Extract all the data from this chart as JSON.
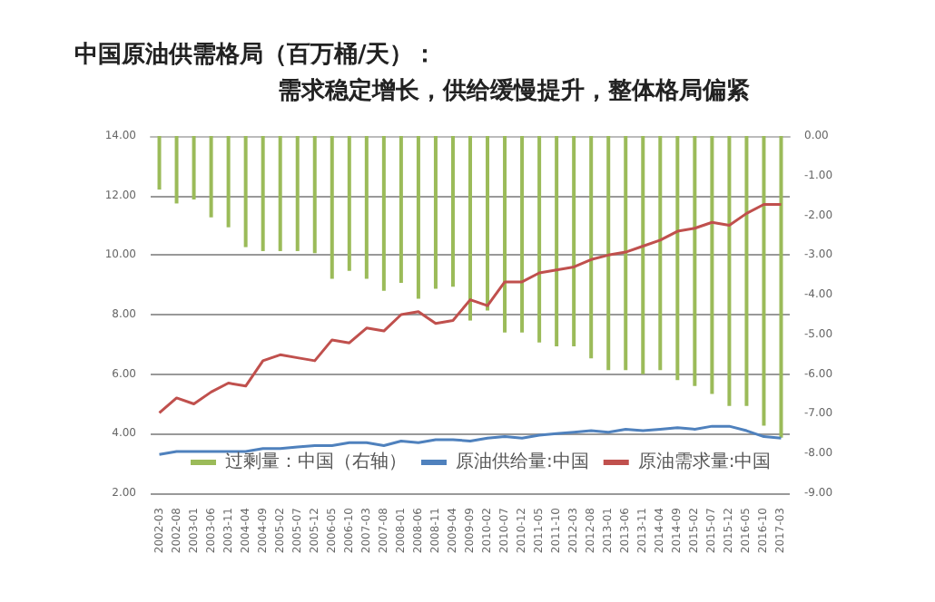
{
  "chart_data": {
    "type": "bar",
    "title": "中国原油供需格局（百万桶/天）：",
    "subtitle": "需求稳定增长，供给缓慢提升，整体格局偏紧",
    "categories": [
      "2002-03",
      "2002-08",
      "2003-01",
      "2003-06",
      "2003-11",
      "2004-04",
      "2004-09",
      "2005-02",
      "2005-07",
      "2005-12",
      "2006-05",
      "2006-10",
      "2007-03",
      "2007-08",
      "2008-01",
      "2008-06",
      "2008-11",
      "2009-04",
      "2009-09",
      "2010-02",
      "2010-07",
      "2010-12",
      "2011-05",
      "2011-10",
      "2012-03",
      "2012-08",
      "2013-01",
      "2013-06",
      "2013-11",
      "2014-04",
      "2014-09",
      "2015-02",
      "2015-07",
      "2015-12",
      "2016-05",
      "2016-10",
      "2017-03"
    ],
    "series": [
      {
        "name": "过剩量：中国（右轴）",
        "axis": "y2",
        "color": "#9bbb59",
        "values": [
          -1.35,
          -1.7,
          -1.6,
          -2.05,
          -2.3,
          -2.8,
          -2.9,
          -2.9,
          -2.9,
          -2.95,
          -3.6,
          -3.4,
          -3.6,
          -3.9,
          -3.7,
          -4.1,
          -3.85,
          -3.8,
          -4.65,
          -4.4,
          -4.95,
          -4.95,
          -5.2,
          -5.3,
          -5.3,
          -5.6,
          -5.9,
          -5.9,
          -6.0,
          -5.9,
          -6.15,
          -6.3,
          -6.5,
          -6.8,
          -6.8,
          -7.3,
          -7.6
        ]
      },
      {
        "name": "原油供给量:中国",
        "type": "line",
        "color": "#4f81bd",
        "values": [
          3.3,
          3.4,
          3.4,
          3.4,
          3.4,
          3.4,
          3.5,
          3.5,
          3.55,
          3.6,
          3.6,
          3.7,
          3.7,
          3.6,
          3.75,
          3.7,
          3.8,
          3.8,
          3.75,
          3.85,
          3.9,
          3.85,
          3.95,
          4.0,
          4.05,
          4.1,
          4.05,
          4.15,
          4.1,
          4.15,
          4.2,
          4.15,
          4.25,
          4.25,
          4.1,
          3.9,
          3.85
        ]
      },
      {
        "name": "原油需求量:中国",
        "type": "line",
        "color": "#c0504d",
        "values": [
          4.7,
          5.2,
          5.0,
          5.4,
          5.7,
          5.6,
          6.45,
          6.65,
          6.55,
          6.45,
          7.15,
          7.05,
          7.55,
          7.45,
          8.0,
          8.1,
          7.7,
          7.8,
          8.5,
          8.3,
          9.1,
          9.1,
          9.4,
          9.5,
          9.6,
          9.85,
          10.0,
          10.1,
          10.3,
          10.5,
          10.8,
          10.9,
          11.1,
          11.0,
          11.4,
          11.7,
          11.7
        ]
      }
    ],
    "ylim": [
      2,
      14
    ],
    "yticks": [
      {
        "value": 2,
        "label": "2.00"
      },
      {
        "value": 4,
        "label": "4.00"
      },
      {
        "value": 6,
        "label": "6.00"
      },
      {
        "value": 8,
        "label": "8.00"
      },
      {
        "value": 10,
        "label": "10.00"
      },
      {
        "value": 12,
        "label": "12.00"
      },
      {
        "value": 14,
        "label": "14.00"
      }
    ],
    "y2lim": [
      -9,
      0
    ],
    "y2ticks": [
      {
        "value": -9,
        "label": "-9.00"
      },
      {
        "value": -8,
        "label": "-8.00"
      },
      {
        "value": -7,
        "label": "-7.00"
      },
      {
        "value": -6,
        "label": "-6.00"
      },
      {
        "value": -5,
        "label": "-5.00"
      },
      {
        "value": -4,
        "label": "-4.00"
      },
      {
        "value": -3,
        "label": "-3.00"
      },
      {
        "value": -2,
        "label": "-2.00"
      },
      {
        "value": -1,
        "label": "-1.00"
      },
      {
        "value": 0,
        "label": "0.00"
      }
    ],
    "grid": "y",
    "legend": "bottom",
    "marker": "none"
  }
}
